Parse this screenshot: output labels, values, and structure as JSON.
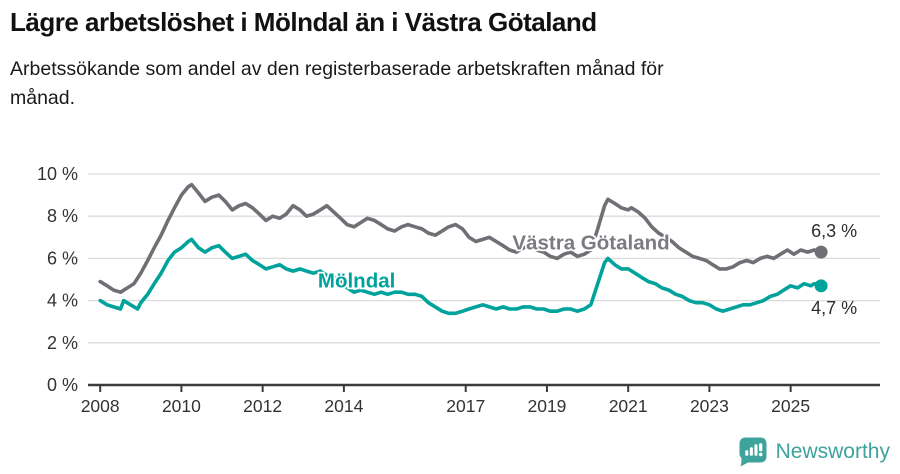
{
  "header": {
    "title": "Lägre arbetslöshet i Mölndal än i Västra Götaland",
    "subtitle": "Arbetssökande som andel av den registerbaserade arbetskraften månad för månad."
  },
  "chart_data": {
    "type": "line",
    "title": "Lägre arbetslöshet i Mölndal än i Västra Götaland",
    "subtitle": "Arbetssökande som andel av den registerbaserade arbetskraften månad för månad.",
    "unit": "%",
    "grid": true,
    "legend_position": "inline",
    "colors": {
      "vastra_gotaland": "#6f6f75",
      "molndal": "#00a39b",
      "gridline": "#dcdcdc",
      "axis": "#3b3b3b",
      "tick_label": "#333333",
      "end_label": "#2e2e2e"
    },
    "x_axis": {
      "range": [
        2007.7,
        2027.2
      ],
      "ticks": [
        2008,
        2010,
        2012,
        2014,
        2017,
        2019,
        2021,
        2023,
        2025
      ],
      "tick_labels": [
        "2008",
        "2010",
        "2012",
        "2014",
        "2017",
        "2019",
        "2021",
        "2023",
        "2025"
      ]
    },
    "y_axis": {
      "range": [
        0,
        10
      ],
      "ticks": [
        0,
        2,
        4,
        6,
        8,
        10
      ],
      "tick_labels": [
        "0 %",
        "2 %",
        "4 %",
        "6 %",
        "8 %",
        "10 %"
      ]
    },
    "series": [
      {
        "name": "Västra Götaland",
        "color": "#6f6f75",
        "label_color": "#7b7b83",
        "label_at": [
          2018.15,
          6.68
        ],
        "end_label": "6,3 %",
        "end_value": 6.3,
        "end_label_position": "above",
        "points": [
          [
            2008.0,
            4.9
          ],
          [
            2008.17,
            4.7
          ],
          [
            2008.33,
            4.5
          ],
          [
            2008.5,
            4.4
          ],
          [
            2008.67,
            4.6
          ],
          [
            2008.83,
            4.8
          ],
          [
            2009.0,
            5.3
          ],
          [
            2009.17,
            5.9
          ],
          [
            2009.33,
            6.5
          ],
          [
            2009.5,
            7.1
          ],
          [
            2009.67,
            7.8
          ],
          [
            2009.83,
            8.4
          ],
          [
            2010.0,
            9.0
          ],
          [
            2010.17,
            9.4
          ],
          [
            2010.25,
            9.5
          ],
          [
            2010.42,
            9.1
          ],
          [
            2010.58,
            8.7
          ],
          [
            2010.75,
            8.9
          ],
          [
            2010.92,
            9.0
          ],
          [
            2011.08,
            8.7
          ],
          [
            2011.25,
            8.3
          ],
          [
            2011.42,
            8.5
          ],
          [
            2011.58,
            8.6
          ],
          [
            2011.75,
            8.4
          ],
          [
            2011.92,
            8.1
          ],
          [
            2012.08,
            7.8
          ],
          [
            2012.25,
            8.0
          ],
          [
            2012.42,
            7.9
          ],
          [
            2012.58,
            8.1
          ],
          [
            2012.75,
            8.5
          ],
          [
            2012.92,
            8.3
          ],
          [
            2013.08,
            8.0
          ],
          [
            2013.25,
            8.1
          ],
          [
            2013.42,
            8.3
          ],
          [
            2013.58,
            8.5
          ],
          [
            2013.75,
            8.2
          ],
          [
            2013.92,
            7.9
          ],
          [
            2014.08,
            7.6
          ],
          [
            2014.25,
            7.5
          ],
          [
            2014.42,
            7.7
          ],
          [
            2014.58,
            7.9
          ],
          [
            2014.75,
            7.8
          ],
          [
            2014.92,
            7.6
          ],
          [
            2015.08,
            7.4
          ],
          [
            2015.25,
            7.3
          ],
          [
            2015.42,
            7.5
          ],
          [
            2015.58,
            7.6
          ],
          [
            2015.75,
            7.5
          ],
          [
            2015.92,
            7.4
          ],
          [
            2016.08,
            7.2
          ],
          [
            2016.25,
            7.1
          ],
          [
            2016.42,
            7.3
          ],
          [
            2016.58,
            7.5
          ],
          [
            2016.75,
            7.6
          ],
          [
            2016.92,
            7.4
          ],
          [
            2017.08,
            7.0
          ],
          [
            2017.25,
            6.8
          ],
          [
            2017.42,
            6.9
          ],
          [
            2017.58,
            7.0
          ],
          [
            2017.75,
            6.8
          ],
          [
            2017.92,
            6.6
          ],
          [
            2018.08,
            6.4
          ],
          [
            2018.25,
            6.3
          ],
          [
            2018.42,
            6.5
          ],
          [
            2018.58,
            6.6
          ],
          [
            2018.75,
            6.4
          ],
          [
            2018.92,
            6.3
          ],
          [
            2019.08,
            6.1
          ],
          [
            2019.25,
            6.0
          ],
          [
            2019.42,
            6.2
          ],
          [
            2019.58,
            6.3
          ],
          [
            2019.75,
            6.1
          ],
          [
            2019.92,
            6.2
          ],
          [
            2020.08,
            6.4
          ],
          [
            2020.25,
            7.4
          ],
          [
            2020.42,
            8.5
          ],
          [
            2020.5,
            8.8
          ],
          [
            2020.67,
            8.6
          ],
          [
            2020.83,
            8.4
          ],
          [
            2021.0,
            8.3
          ],
          [
            2021.08,
            8.4
          ],
          [
            2021.25,
            8.2
          ],
          [
            2021.42,
            7.9
          ],
          [
            2021.58,
            7.5
          ],
          [
            2021.75,
            7.2
          ],
          [
            2021.92,
            7.0
          ],
          [
            2022.08,
            6.8
          ],
          [
            2022.25,
            6.5
          ],
          [
            2022.42,
            6.3
          ],
          [
            2022.58,
            6.1
          ],
          [
            2022.75,
            6.0
          ],
          [
            2022.92,
            5.9
          ],
          [
            2023.08,
            5.7
          ],
          [
            2023.25,
            5.5
          ],
          [
            2023.42,
            5.5
          ],
          [
            2023.58,
            5.6
          ],
          [
            2023.75,
            5.8
          ],
          [
            2023.92,
            5.9
          ],
          [
            2024.08,
            5.8
          ],
          [
            2024.25,
            6.0
          ],
          [
            2024.42,
            6.1
          ],
          [
            2024.58,
            6.0
          ],
          [
            2024.75,
            6.2
          ],
          [
            2024.92,
            6.4
          ],
          [
            2025.08,
            6.2
          ],
          [
            2025.25,
            6.4
          ],
          [
            2025.42,
            6.3
          ],
          [
            2025.58,
            6.4
          ],
          [
            2025.75,
            6.3
          ]
        ]
      },
      {
        "name": "Mölndal",
        "color": "#00a39b",
        "label_color": "#00a39b",
        "label_at": [
          2013.36,
          4.88
        ],
        "end_label": "4,7 %",
        "end_value": 4.7,
        "end_label_position": "below",
        "points": [
          [
            2008.0,
            4.0
          ],
          [
            2008.17,
            3.8
          ],
          [
            2008.33,
            3.7
          ],
          [
            2008.5,
            3.6
          ],
          [
            2008.58,
            4.0
          ],
          [
            2008.75,
            3.8
          ],
          [
            2008.92,
            3.6
          ],
          [
            2009.0,
            3.9
          ],
          [
            2009.17,
            4.3
          ],
          [
            2009.33,
            4.8
          ],
          [
            2009.5,
            5.3
          ],
          [
            2009.67,
            5.9
          ],
          [
            2009.83,
            6.3
          ],
          [
            2010.0,
            6.5
          ],
          [
            2010.17,
            6.8
          ],
          [
            2010.25,
            6.9
          ],
          [
            2010.42,
            6.5
          ],
          [
            2010.58,
            6.3
          ],
          [
            2010.75,
            6.5
          ],
          [
            2010.92,
            6.6
          ],
          [
            2011.08,
            6.3
          ],
          [
            2011.25,
            6.0
          ],
          [
            2011.42,
            6.1
          ],
          [
            2011.58,
            6.2
          ],
          [
            2011.75,
            5.9
          ],
          [
            2011.92,
            5.7
          ],
          [
            2012.08,
            5.5
          ],
          [
            2012.25,
            5.6
          ],
          [
            2012.42,
            5.7
          ],
          [
            2012.58,
            5.5
          ],
          [
            2012.75,
            5.4
          ],
          [
            2012.92,
            5.5
          ],
          [
            2013.08,
            5.4
          ],
          [
            2013.25,
            5.3
          ],
          [
            2013.42,
            5.4
          ],
          [
            2013.58,
            5.2
          ],
          [
            2013.75,
            5.1
          ],
          [
            2013.92,
            5.0
          ],
          [
            2014.08,
            4.6
          ],
          [
            2014.25,
            4.4
          ],
          [
            2014.42,
            4.5
          ],
          [
            2014.58,
            4.4
          ],
          [
            2014.75,
            4.3
          ],
          [
            2014.92,
            4.4
          ],
          [
            2015.08,
            4.3
          ],
          [
            2015.25,
            4.4
          ],
          [
            2015.42,
            4.4
          ],
          [
            2015.58,
            4.3
          ],
          [
            2015.75,
            4.3
          ],
          [
            2015.92,
            4.2
          ],
          [
            2016.08,
            3.9
          ],
          [
            2016.25,
            3.7
          ],
          [
            2016.42,
            3.5
          ],
          [
            2016.58,
            3.4
          ],
          [
            2016.75,
            3.4
          ],
          [
            2016.92,
            3.5
          ],
          [
            2017.08,
            3.6
          ],
          [
            2017.25,
            3.7
          ],
          [
            2017.42,
            3.8
          ],
          [
            2017.58,
            3.7
          ],
          [
            2017.75,
            3.6
          ],
          [
            2017.92,
            3.7
          ],
          [
            2018.08,
            3.6
          ],
          [
            2018.25,
            3.6
          ],
          [
            2018.42,
            3.7
          ],
          [
            2018.58,
            3.7
          ],
          [
            2018.75,
            3.6
          ],
          [
            2018.92,
            3.6
          ],
          [
            2019.08,
            3.5
          ],
          [
            2019.25,
            3.5
          ],
          [
            2019.42,
            3.6
          ],
          [
            2019.58,
            3.6
          ],
          [
            2019.75,
            3.5
          ],
          [
            2019.92,
            3.6
          ],
          [
            2020.08,
            3.8
          ],
          [
            2020.25,
            4.8
          ],
          [
            2020.42,
            5.8
          ],
          [
            2020.5,
            6.0
          ],
          [
            2020.67,
            5.7
          ],
          [
            2020.83,
            5.5
          ],
          [
            2021.0,
            5.5
          ],
          [
            2021.17,
            5.3
          ],
          [
            2021.33,
            5.1
          ],
          [
            2021.5,
            4.9
          ],
          [
            2021.67,
            4.8
          ],
          [
            2021.83,
            4.6
          ],
          [
            2022.0,
            4.5
          ],
          [
            2022.17,
            4.3
          ],
          [
            2022.33,
            4.2
          ],
          [
            2022.5,
            4.0
          ],
          [
            2022.67,
            3.9
          ],
          [
            2022.83,
            3.9
          ],
          [
            2023.0,
            3.8
          ],
          [
            2023.17,
            3.6
          ],
          [
            2023.33,
            3.5
          ],
          [
            2023.5,
            3.6
          ],
          [
            2023.67,
            3.7
          ],
          [
            2023.83,
            3.8
          ],
          [
            2024.0,
            3.8
          ],
          [
            2024.17,
            3.9
          ],
          [
            2024.33,
            4.0
          ],
          [
            2024.5,
            4.2
          ],
          [
            2024.67,
            4.3
          ],
          [
            2024.83,
            4.5
          ],
          [
            2025.0,
            4.7
          ],
          [
            2025.17,
            4.6
          ],
          [
            2025.33,
            4.8
          ],
          [
            2025.5,
            4.7
          ],
          [
            2025.58,
            4.8
          ],
          [
            2025.75,
            4.7
          ]
        ]
      }
    ]
  },
  "footer": {
    "brand": "Newsworthy",
    "logo_icon": "bar-chart-badge-icon",
    "brand_color": "#3da39c"
  }
}
